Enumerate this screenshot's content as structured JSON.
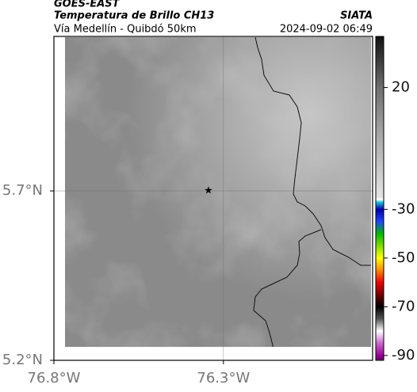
{
  "header": {
    "title": "GOES-EAST",
    "subtitle": "Temperatura de Brillo CH13",
    "source": "SIATA",
    "route": "Vía Medellín - Quibdó 50km",
    "timestamp": "2024-09-02 06:49"
  },
  "map": {
    "xlim": [
      -76.8,
      -75.86
    ],
    "ylim": [
      5.2,
      6.156
    ],
    "xticks": [
      {
        "value": -76.8,
        "label": "76.8°W"
      },
      {
        "value": -76.3,
        "label": "76.3°W"
      }
    ],
    "yticks": [
      {
        "value": 5.7,
        "label": "5.7°N"
      },
      {
        "value": 5.2,
        "label": "5.2°N"
      }
    ],
    "grid": true,
    "marker": {
      "lon": -76.344,
      "lat": 5.7
    }
  },
  "colorbar": {
    "lim": [
      -92,
      41
    ],
    "ticks": [
      20,
      -30,
      -50,
      -70,
      -90
    ],
    "stops": [
      [
        41,
        "#111111"
      ],
      [
        20,
        "#6e6e6e"
      ],
      [
        0,
        "#a8a8a8"
      ],
      [
        -25,
        "#e4e4e4"
      ],
      [
        -26,
        "#ffffff"
      ],
      [
        -27,
        "#22ccdd"
      ],
      [
        -30,
        "#0000aa"
      ],
      [
        -35,
        "#2244ff"
      ],
      [
        -40,
        "#00bb00"
      ],
      [
        -50,
        "#ffff00"
      ],
      [
        -55,
        "#ff8800"
      ],
      [
        -60,
        "#ee0000"
      ],
      [
        -65,
        "#770000"
      ],
      [
        -70,
        "#000000"
      ],
      [
        -75,
        "#555555"
      ],
      [
        -80,
        "#ffffff"
      ],
      [
        -85,
        "#cc66cc"
      ],
      [
        -90,
        "#990099"
      ],
      [
        -92,
        "#660066"
      ]
    ]
  }
}
